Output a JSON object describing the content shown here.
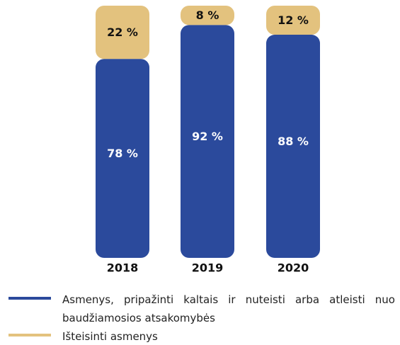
{
  "chart_data": {
    "type": "stacked-bar",
    "categories": [
      "2018",
      "2019",
      "2020"
    ],
    "series": [
      {
        "name": "Asmenys, pripažinti kaltais ir nuteisti arba atleisti nuo baudžiamosios atsakomybės",
        "color": "#2b4a9c",
        "values": [
          78,
          92,
          88
        ],
        "value_labels": [
          "78 %",
          "92 %",
          "88 %"
        ]
      },
      {
        "name": "Išteisinti asmenys",
        "color": "#e3c27e",
        "values": [
          22,
          8,
          12
        ],
        "value_labels": [
          "22 %",
          "8 %",
          "12 %"
        ]
      }
    ],
    "ylim": [
      0,
      100
    ]
  }
}
